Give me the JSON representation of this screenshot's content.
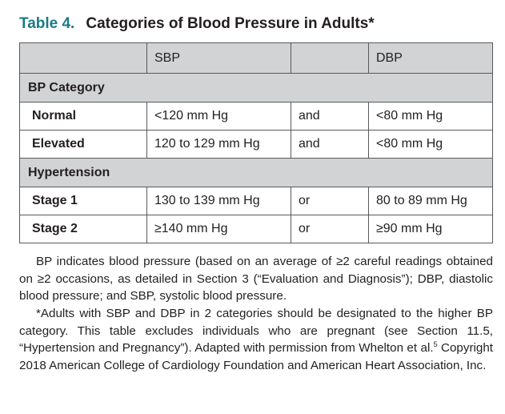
{
  "title": {
    "number": "Table 4.",
    "text": "Categories of Blood Pressure in Adults*"
  },
  "header": {
    "blank": "",
    "sbp": "SBP",
    "conj": "",
    "dbp": "DBP"
  },
  "groups": {
    "bp_category": "BP Category",
    "hypertension": "Hypertension"
  },
  "rows": {
    "normal": {
      "category": "Normal",
      "sbp": "<120 mm Hg",
      "conj": "and",
      "dbp": "<80 mm Hg"
    },
    "elevated": {
      "category": "Elevated",
      "sbp": "120 to 129 mm Hg",
      "conj": "and",
      "dbp": "<80 mm Hg"
    },
    "stage1": {
      "category": "Stage 1",
      "sbp": "130 to 139 mm Hg",
      "conj": "or",
      "dbp": "80 to 89 mm Hg"
    },
    "stage2": {
      "category": "Stage 2",
      "sbp": "≥140 mm Hg",
      "conj": "or",
      "dbp": "≥90 mm Hg"
    }
  },
  "footnotes": {
    "abbreviations": "BP indicates blood pressure (based on an average of ≥2 careful readings obtained on ≥2 occasions, as detailed in Section 3 (“Evaluation and Diagnosis”); DBP, diastolic blood pressure; and SBP, systolic blood pressure.",
    "asterisk_text": "*Adults with SBP and DBP in 2 categories should be designated to the higher BP category. This table excludes individuals who are pregnant (see Section 11.5, “Hypertension and Pregnancy”). Adapted with permission from Whelton et al.",
    "asterisk_ref": "5",
    "asterisk_tail": " Copyright 2018 American College of Cardiology Foundation and American Heart Association, Inc."
  }
}
